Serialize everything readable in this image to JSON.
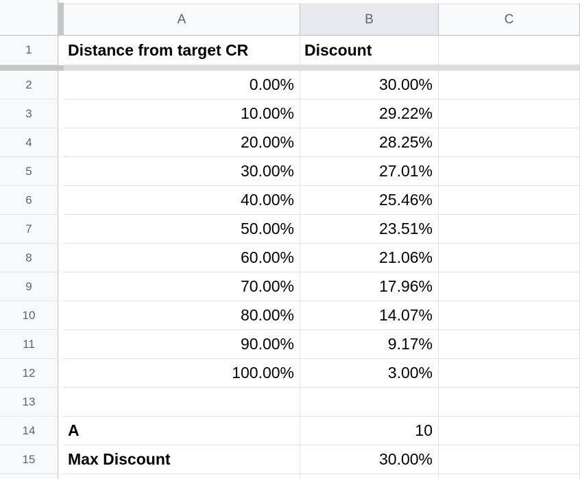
{
  "columns": [
    {
      "label": "A",
      "selected": false
    },
    {
      "label": "B",
      "selected": true
    },
    {
      "label": "C",
      "selected": false
    }
  ],
  "rows": [
    {
      "num": "1",
      "a": "Distance from target CR",
      "b": "Discount",
      "a_bold": true,
      "b_bold": true,
      "a_align": "left",
      "b_align": "left"
    },
    {
      "num": "2",
      "a": "0.00%",
      "b": "30.00%"
    },
    {
      "num": "3",
      "a": "10.00%",
      "b": "29.22%"
    },
    {
      "num": "4",
      "a": "20.00%",
      "b": "28.25%"
    },
    {
      "num": "5",
      "a": "30.00%",
      "b": "27.01%"
    },
    {
      "num": "6",
      "a": "40.00%",
      "b": "25.46%"
    },
    {
      "num": "7",
      "a": "50.00%",
      "b": "23.51%"
    },
    {
      "num": "8",
      "a": "60.00%",
      "b": "21.06%"
    },
    {
      "num": "9",
      "a": "70.00%",
      "b": "17.96%"
    },
    {
      "num": "10",
      "a": "80.00%",
      "b": "14.07%"
    },
    {
      "num": "11",
      "a": "90.00%",
      "b": "9.17%"
    },
    {
      "num": "12",
      "a": "100.00%",
      "b": "3.00%"
    },
    {
      "num": "13",
      "a": "",
      "b": ""
    },
    {
      "num": "14",
      "a": "A",
      "b": "10",
      "a_bold": true,
      "a_align": "left"
    },
    {
      "num": "15",
      "a": "Max Discount",
      "b": "30.00%",
      "a_bold": true,
      "a_align": "left"
    },
    {
      "num": "",
      "a": "",
      "b": ""
    }
  ],
  "colors": {
    "header_bg": "#f8f9fa",
    "header_selected_bg": "#e8eaed",
    "grid_line": "#e2e2e2",
    "header_text": "#5f6368"
  }
}
